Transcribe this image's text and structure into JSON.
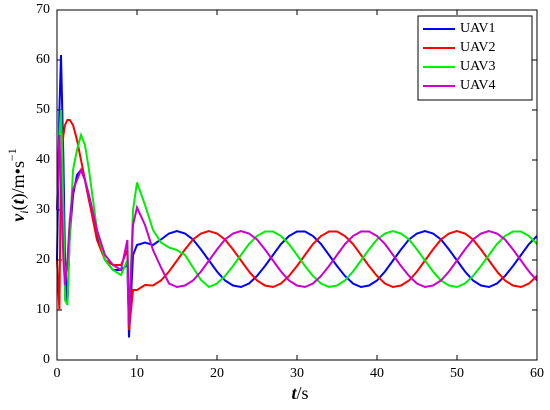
{
  "chart_data": {
    "type": "line",
    "xlabel": [
      "t",
      "/s"
    ],
    "ylabel": [
      "v",
      "i",
      "(",
      "t",
      ")/m•s",
      "−1"
    ],
    "x": [
      0,
      0.3,
      0.5,
      0.8,
      1,
      1.3,
      1.6,
      2,
      2.5,
      3,
      3.5,
      4,
      5,
      6,
      7,
      8,
      8.8,
      9,
      9.5,
      10,
      11,
      12,
      13,
      14,
      15,
      16,
      17,
      18,
      19,
      20,
      21,
      22,
      23,
      24,
      25,
      26,
      27,
      28,
      29,
      30,
      31,
      32,
      33,
      34,
      35,
      36,
      37,
      38,
      39,
      40,
      41,
      42,
      43,
      44,
      45,
      46,
      47,
      48,
      49,
      50,
      51,
      52,
      53,
      54,
      55,
      56,
      57,
      58,
      59,
      60
    ],
    "series": [
      {
        "name": "UAV1",
        "color": "#0000ff",
        "values": [
          20,
          50,
          61,
          40,
          20,
          11,
          25,
          33,
          37,
          38,
          36,
          32,
          25,
          20,
          18,
          18,
          19,
          4.5,
          21,
          23,
          23.5,
          23,
          24.1,
          25.3,
          25.8,
          25.3,
          24.1,
          22.1,
          19.9,
          17.7,
          15.9,
          14.9,
          14.6,
          15.3,
          16.8,
          18.8,
          21.0,
          23.2,
          24.8,
          25.7,
          25.7,
          24.8,
          23.2,
          21.0,
          18.8,
          16.8,
          15.3,
          14.6,
          14.9,
          15.9,
          17.7,
          19.9,
          22.1,
          24.1,
          25.3,
          25.8,
          25.3,
          24.1,
          22.1,
          19.9,
          17.7,
          15.9,
          14.9,
          14.6,
          15.3,
          16.8,
          18.8,
          21.0,
          23.2,
          24.8
        ]
      },
      {
        "name": "UAV2",
        "color": "#ff0000",
        "values": [
          20,
          10,
          40,
          45,
          47,
          48,
          48,
          47,
          44,
          40,
          36,
          32,
          24,
          20,
          19,
          19,
          22,
          6,
          14,
          14,
          15,
          14.9,
          15.9,
          17.7,
          19.9,
          22.1,
          24.1,
          25.3,
          25.8,
          25.3,
          24.1,
          22.1,
          19.9,
          17.7,
          15.9,
          14.9,
          14.6,
          15.3,
          16.8,
          18.8,
          21.0,
          23.2,
          24.8,
          25.7,
          25.7,
          24.8,
          23.2,
          21.0,
          18.8,
          16.8,
          15.3,
          14.6,
          14.9,
          15.9,
          17.7,
          19.9,
          22.1,
          24.1,
          25.3,
          25.8,
          25.3,
          24.1,
          22.1,
          19.9,
          17.7,
          15.9,
          14.9,
          14.6,
          15.3,
          16.8
        ]
      },
      {
        "name": "UAV3",
        "color": "#00ee00",
        "values": [
          30,
          45,
          50,
          30,
          12,
          11,
          25,
          38,
          42,
          45,
          43,
          38,
          26,
          20,
          18,
          17,
          20,
          8,
          30,
          35.5,
          31,
          26,
          23.5,
          22.5,
          22,
          21,
          18.5,
          16,
          14.6,
          15.3,
          16.8,
          18.8,
          21.0,
          23.2,
          24.8,
          25.7,
          25.7,
          24.8,
          23.2,
          21.0,
          18.8,
          16.8,
          15.3,
          14.6,
          14.9,
          15.9,
          17.7,
          19.9,
          22.1,
          24.1,
          25.3,
          25.8,
          25.3,
          24.1,
          22.1,
          19.9,
          17.7,
          15.9,
          14.9,
          14.6,
          15.3,
          16.8,
          18.8,
          21.0,
          23.2,
          24.8,
          25.7,
          25.7,
          24.8,
          23.2
        ]
      },
      {
        "name": "UAV4",
        "color": "#cc00cc",
        "values": [
          30,
          45,
          35,
          20,
          15,
          20,
          28,
          34,
          36,
          38,
          36,
          33,
          26,
          21,
          19,
          18,
          24,
          7,
          27,
          30.5,
          27,
          22,
          18.5,
          15.3,
          14.6,
          14.9,
          15.9,
          17.7,
          19.9,
          22.1,
          24.1,
          25.3,
          25.8,
          25.3,
          24.1,
          22.1,
          19.9,
          17.7,
          15.9,
          14.9,
          14.6,
          15.3,
          16.8,
          18.8,
          21.0,
          23.2,
          24.8,
          25.7,
          25.7,
          24.8,
          23.2,
          21.0,
          18.8,
          16.8,
          15.3,
          14.6,
          14.9,
          15.9,
          17.7,
          19.9,
          22.1,
          24.1,
          25.3,
          25.8,
          25.3,
          24.1,
          22.1,
          19.9,
          17.7,
          15.9
        ]
      }
    ],
    "xlim": [
      0,
      60
    ],
    "xticks": [
      0,
      10,
      20,
      30,
      40,
      50,
      60
    ],
    "ylim": [
      0,
      70
    ],
    "yticks": [
      0,
      10,
      20,
      30,
      40,
      50,
      60,
      70
    ],
    "grid": false,
    "legend": "upper-right"
  }
}
